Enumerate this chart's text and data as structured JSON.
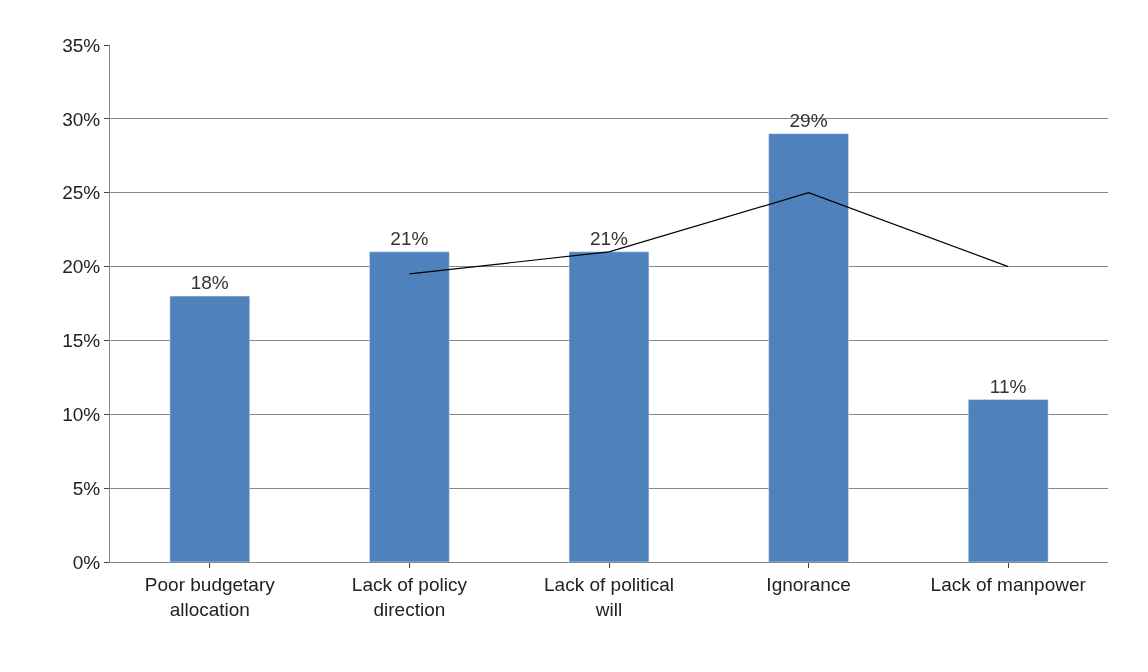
{
  "chart_data": {
    "type": "bar",
    "categories": [
      "Poor budgetary allocation",
      "Lack of policy direction",
      "Lack of political will",
      "Ignorance",
      "Lack of manpower"
    ],
    "series": [
      {
        "color": "#4f81bd",
        "values": [
          18,
          21,
          21,
          29,
          11
        ],
        "value_labels": [
          "18%",
          "21%",
          "21%",
          "29%",
          "11%"
        ]
      },
      {
        "type": "line",
        "color": "#000000",
        "values": [
          null,
          19.5,
          21,
          25,
          20
        ],
        "marker": "none",
        "line_style": "solid"
      }
    ],
    "ylim": [
      0,
      35
    ],
    "yticks": [
      {
        "value": 0,
        "label": "0%"
      },
      {
        "value": 5,
        "label": "5%"
      },
      {
        "value": 10,
        "label": "10%"
      },
      {
        "value": 15,
        "label": "15%"
      },
      {
        "value": 20,
        "label": "20%"
      },
      {
        "value": 25,
        "label": "25%"
      },
      {
        "value": 30,
        "label": "30%"
      },
      {
        "value": 35,
        "label": "35%"
      }
    ],
    "grid": "y",
    "legend": false
  }
}
